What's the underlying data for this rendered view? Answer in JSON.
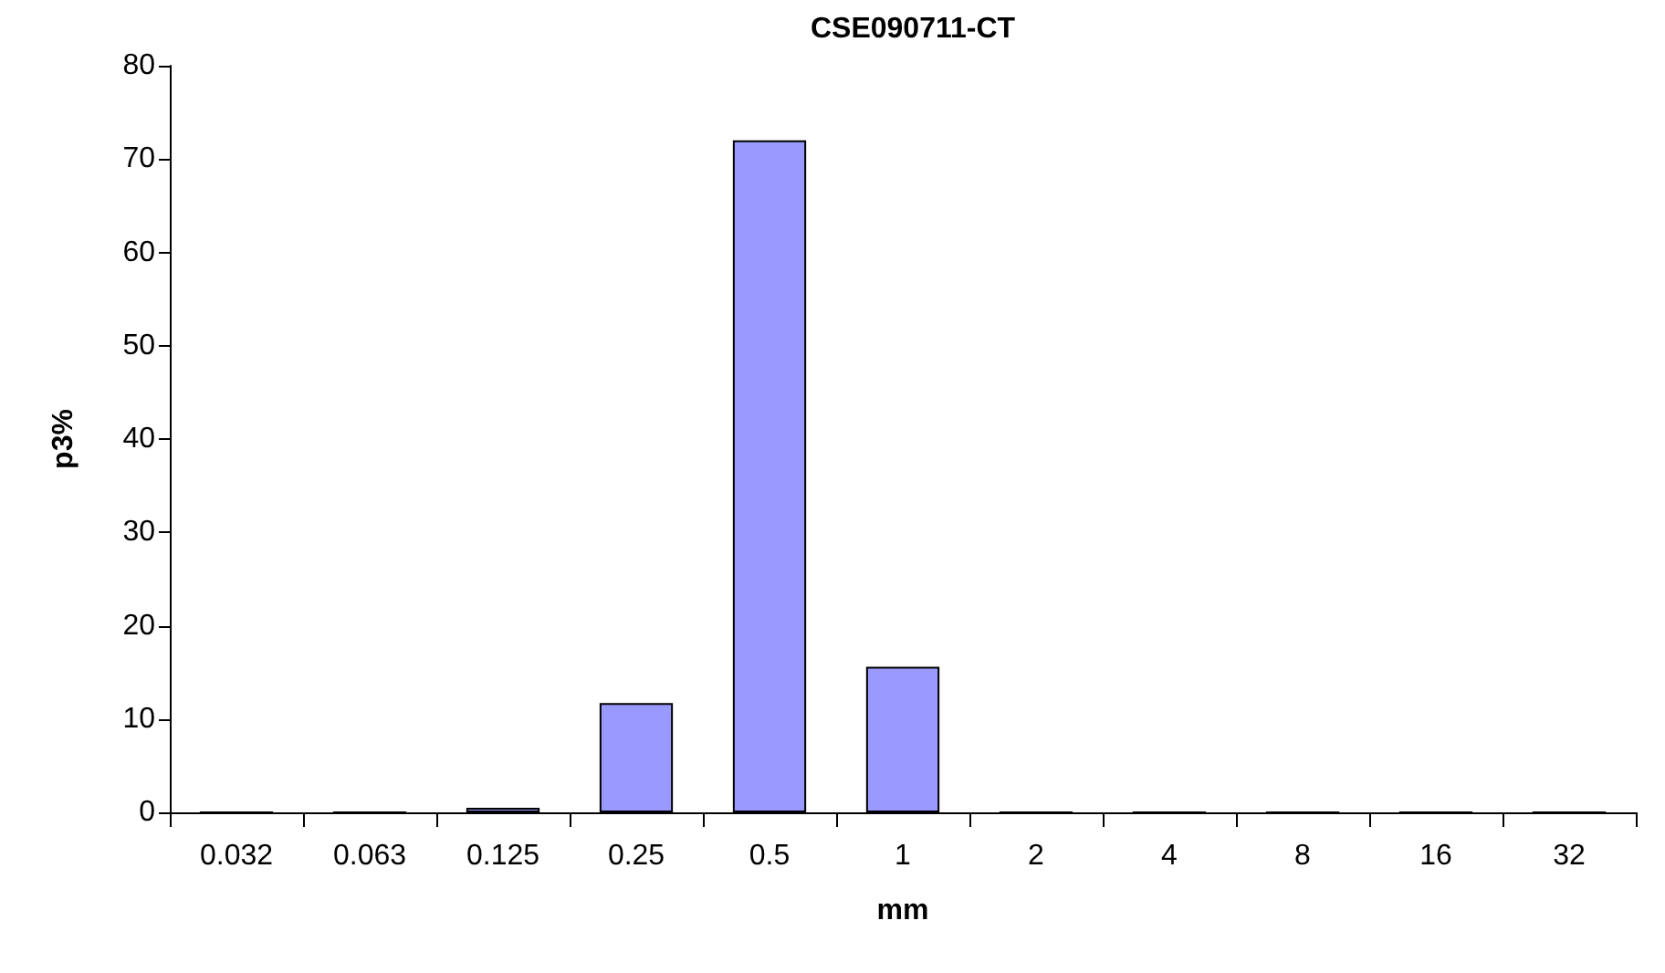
{
  "chart_data": {
    "type": "bar",
    "title": "CSE090711-CT",
    "xlabel": "mm",
    "ylabel": "p3%",
    "categories": [
      "0.032",
      "0.063",
      "0.125",
      "0.25",
      "0.5",
      "1",
      "2",
      "4",
      "8",
      "16",
      "32"
    ],
    "values": [
      0,
      0,
      0.5,
      11.7,
      72,
      15.6,
      0,
      0,
      0,
      0,
      0
    ],
    "color": "#9999ff",
    "ylim": [
      0,
      80
    ],
    "yticks": [
      0,
      10,
      20,
      30,
      40,
      50,
      60,
      70,
      80
    ],
    "grid": false
  }
}
